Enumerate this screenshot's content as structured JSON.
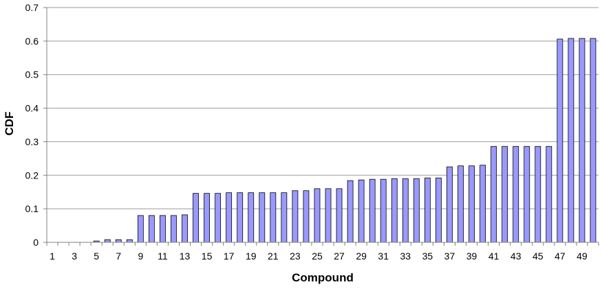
{
  "chart_data": {
    "type": "bar",
    "title": "",
    "xlabel": "Compound",
    "ylabel": "CDF",
    "ylim": [
      0,
      0.7
    ],
    "yticks": [
      "0",
      "0.1",
      "0.2",
      "0.3",
      "0.4",
      "0.5",
      "0.6",
      "0.7"
    ],
    "xtick_labels": [
      "1",
      "3",
      "5",
      "7",
      "9",
      "11",
      "13",
      "15",
      "17",
      "19",
      "21",
      "23",
      "25",
      "27",
      "29",
      "31",
      "33",
      "35",
      "37",
      "39",
      "41",
      "43",
      "45",
      "47",
      "49"
    ],
    "categories": [
      1,
      2,
      3,
      4,
      5,
      6,
      7,
      8,
      9,
      10,
      11,
      12,
      13,
      14,
      15,
      16,
      17,
      18,
      19,
      20,
      21,
      22,
      23,
      24,
      25,
      26,
      27,
      28,
      29,
      30,
      31,
      32,
      33,
      34,
      35,
      36,
      37,
      38,
      39,
      40,
      41,
      42,
      43,
      44,
      45,
      46,
      47,
      48,
      49,
      50
    ],
    "values": [
      0,
      0,
      0,
      0,
      0.004,
      0.008,
      0.008,
      0.008,
      0.08,
      0.08,
      0.08,
      0.08,
      0.082,
      0.146,
      0.146,
      0.146,
      0.148,
      0.148,
      0.148,
      0.148,
      0.148,
      0.148,
      0.154,
      0.154,
      0.16,
      0.16,
      0.16,
      0.184,
      0.186,
      0.188,
      0.188,
      0.19,
      0.19,
      0.19,
      0.192,
      0.192,
      0.225,
      0.228,
      0.228,
      0.23,
      0.286,
      0.286,
      0.286,
      0.286,
      0.286,
      0.286,
      0.606,
      0.608,
      0.608,
      0.608
    ],
    "grid": true,
    "legend": "none",
    "colors": {
      "bar_fill": "#9999ff",
      "bar_stroke": "#000000",
      "grid": "#9a9a9a",
      "axis": "#808080"
    }
  }
}
